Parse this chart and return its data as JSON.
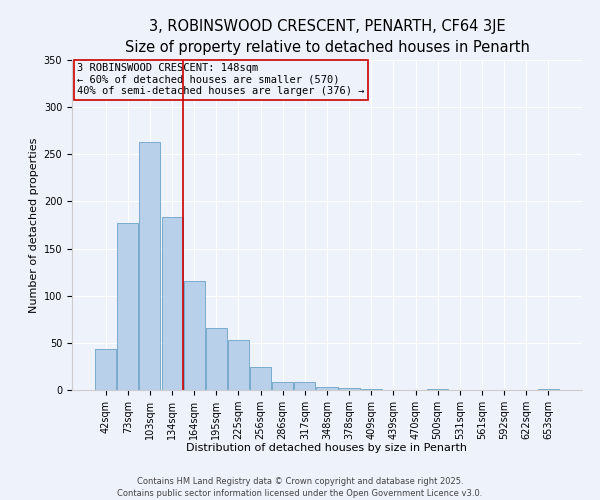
{
  "title": "3, ROBINSWOOD CRESCENT, PENARTH, CF64 3JE",
  "subtitle": "Size of property relative to detached houses in Penarth",
  "xlabel": "Distribution of detached houses by size in Penarth",
  "ylabel": "Number of detached properties",
  "bar_labels": [
    "42sqm",
    "73sqm",
    "103sqm",
    "134sqm",
    "164sqm",
    "195sqm",
    "225sqm",
    "256sqm",
    "286sqm",
    "317sqm",
    "348sqm",
    "378sqm",
    "409sqm",
    "439sqm",
    "470sqm",
    "500sqm",
    "531sqm",
    "561sqm",
    "592sqm",
    "622sqm",
    "653sqm"
  ],
  "bar_values": [
    44,
    177,
    263,
    184,
    116,
    66,
    53,
    24,
    8,
    8,
    3,
    2,
    1,
    0,
    0,
    1,
    0,
    0,
    0,
    0,
    1
  ],
  "bar_color": "#b8d0ea",
  "bar_edge_color": "#6ba3c8",
  "vline_color": "#cc0000",
  "annotation_title": "3 ROBINSWOOD CRESCENT: 148sqm",
  "annotation_line1": "← 60% of detached houses are smaller (570)",
  "annotation_line2": "40% of semi-detached houses are larger (376) →",
  "annotation_box_color": "#cc0000",
  "ylim": [
    0,
    350
  ],
  "yticks": [
    0,
    50,
    100,
    150,
    200,
    250,
    300,
    350
  ],
  "background_color": "#eef2fb",
  "footer1": "Contains HM Land Registry data © Crown copyright and database right 2025.",
  "footer2": "Contains public sector information licensed under the Open Government Licence v3.0.",
  "title_fontsize": 10.5,
  "subtitle_fontsize": 8.5,
  "axis_label_fontsize": 8,
  "tick_fontsize": 7,
  "annotation_fontsize": 7.5
}
